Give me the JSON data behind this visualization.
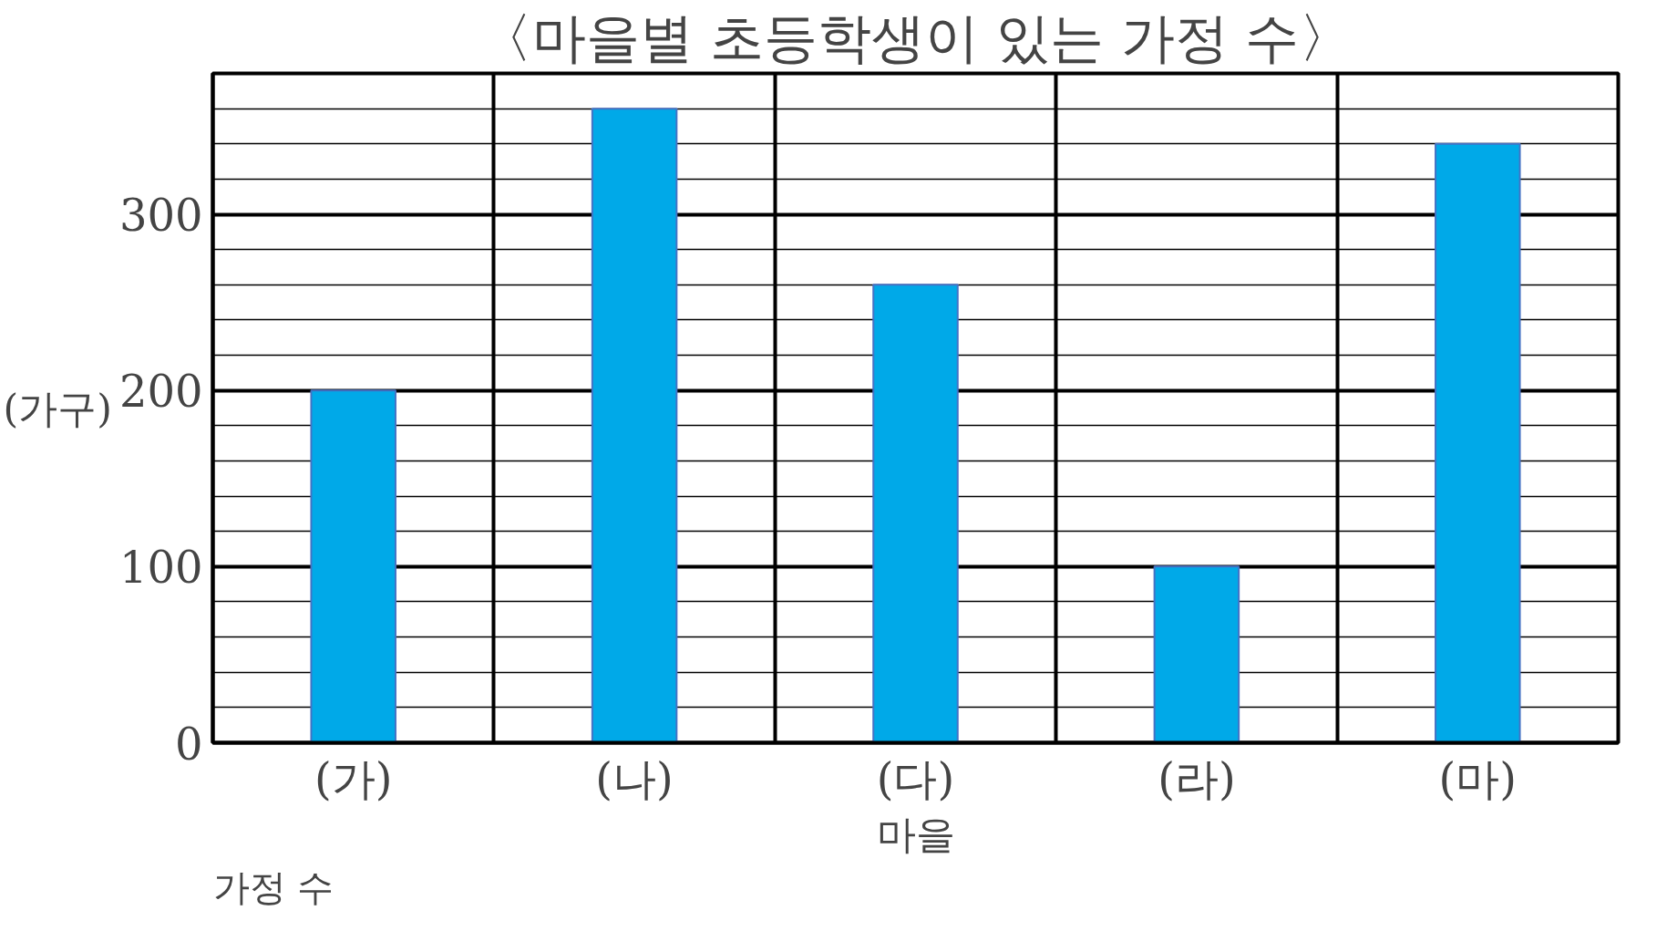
{
  "chart_data": {
    "type": "bar",
    "title": "〈마을별 초등학생이 있는 가정 수〉",
    "ylabel": "(가구)",
    "xlabel": "마을",
    "annotations": [
      "가정 수"
    ],
    "categories": [
      "(가)",
      "(나)",
      "(다)",
      "(라)",
      "(마)"
    ],
    "values": [
      200,
      360,
      260,
      100,
      340
    ],
    "color": "#00a9e8",
    "ylim": [
      0,
      380
    ],
    "yticks": [
      0,
      100,
      200,
      300
    ],
    "grid": true
  }
}
